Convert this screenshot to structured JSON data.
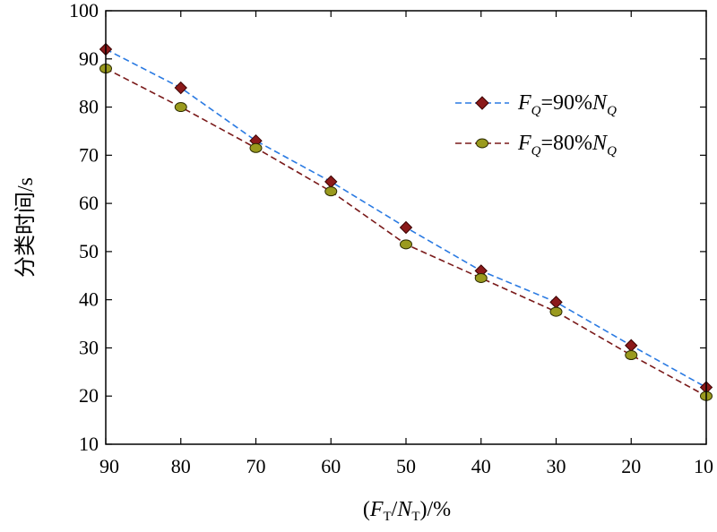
{
  "chart_data": {
    "type": "line",
    "title": "",
    "x": [
      90,
      80,
      70,
      60,
      50,
      40,
      30,
      20,
      10
    ],
    "xlim": [
      90,
      10
    ],
    "ylim": [
      10,
      100
    ],
    "xticks": [
      "90",
      "80",
      "70",
      "60",
      "50",
      "40",
      "30",
      "20",
      "10"
    ],
    "yticks": [
      "10",
      "20",
      "30",
      "40",
      "50",
      "60",
      "70",
      "80",
      "90",
      "100"
    ],
    "xlabel": "(F_T/N_T)/%",
    "ylabel": "分类时间/s",
    "xlabel_parts": {
      "open": "(",
      "F": "F",
      "sub1": "T",
      "slash": "/",
      "N": "N",
      "sub2": "T",
      "close": ")/%"
    },
    "legend_position": "top-right",
    "grid": false,
    "series": [
      {
        "name": "F_Q=90%N_Q",
        "label_parts": {
          "F": "F",
          "sub": "Q",
          "mid": "=90%",
          "N": "N",
          "sub2": "Q"
        },
        "values": [
          92,
          84,
          73,
          64.5,
          55,
          46,
          39.5,
          30.5,
          21.8
        ],
        "line_color": "#2a7ae2",
        "marker": "diamond",
        "marker_fill": "#8b1a1a",
        "marker_stroke": "#3a0000"
      },
      {
        "name": "F_Q=80%N_Q",
        "label_parts": {
          "F": "F",
          "sub": "Q",
          "mid": "=80%",
          "N": "N",
          "sub2": "Q"
        },
        "values": [
          88,
          80,
          71.5,
          62.5,
          51.5,
          44.5,
          37.5,
          28.5,
          20
        ],
        "line_color": "#7a1a1a",
        "marker": "circle",
        "marker_fill": "#9a9a1e",
        "marker_stroke": "#2a2a00"
      }
    ]
  }
}
